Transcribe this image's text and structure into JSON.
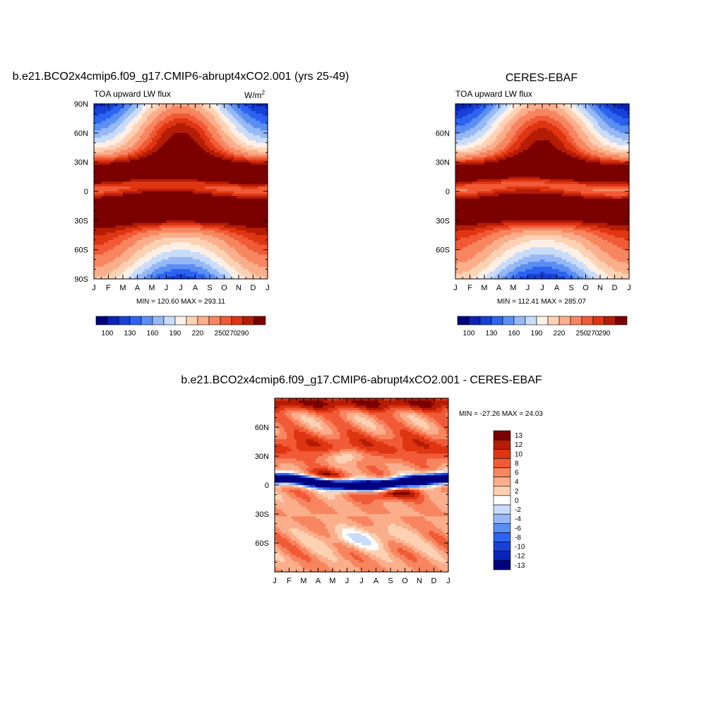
{
  "panels": [
    {
      "title": "b.e21.BCO2x4cmip6.f09_g17.CMIP6-abrupt4xCO2.001 (yrs 25-49)",
      "subtitle": "TOA upward LW flux",
      "units_base": "W/m",
      "units_exp": "2",
      "stats": "MIN = 120.60 MAX = 293.11",
      "colorbar_labels": [
        "100",
        "130",
        "160",
        "190",
        "220",
        "250",
        "270",
        "290"
      ]
    },
    {
      "title": "CERES-EBAF",
      "subtitle": "TOA upward LW flux",
      "units_base": "",
      "units_exp": "",
      "stats": "MIN = 112.41 MAX = 285.07",
      "colorbar_labels": [
        "100",
        "130",
        "160",
        "190",
        "220",
        "250",
        "270",
        "290"
      ]
    },
    {
      "title": "b.e21.BCO2x4cmip6.f09_g17.CMIP6-abrupt4xCO2.001 - CERES-EBAF",
      "subtitle": "",
      "units_base": "",
      "units_exp": "",
      "stats": "MIN = -27.26 MAX =  24.03",
      "colorbar_labels": [
        "13",
        "12",
        "10",
        "8",
        "6",
        "4",
        "2",
        "0",
        "-2",
        "-4",
        "-6",
        "-8",
        "-10",
        "-12",
        "-13"
      ]
    }
  ],
  "chart_data": [
    {
      "type": "heatmap",
      "title": "b.e21.BCO2x4cmip6.f09_g17.CMIP6-abrupt4xCO2.001 (yrs 25-49)",
      "subtitle": "TOA upward LW flux",
      "units": "W/m2",
      "x_tick_labels": [
        "J",
        "F",
        "M",
        "A",
        "M",
        "J",
        "J",
        "A",
        "S",
        "O",
        "N",
        "D",
        "J"
      ],
      "y_tick_labels": [
        "90N",
        "60N",
        "30N",
        "0",
        "30S",
        "60S",
        "90S"
      ],
      "ylim": [
        -90,
        90
      ],
      "levels": [
        100,
        115,
        130,
        145,
        160,
        175,
        190,
        205,
        220,
        235,
        250,
        260,
        270,
        280,
        290
      ],
      "min": 120.6,
      "max": 293.11
    },
    {
      "type": "heatmap",
      "title": "CERES-EBAF",
      "subtitle": "TOA upward LW flux",
      "units": "W/m2",
      "x_tick_labels": [
        "J",
        "F",
        "M",
        "A",
        "M",
        "J",
        "J",
        "A",
        "S",
        "O",
        "N",
        "D",
        "J"
      ],
      "y_tick_labels": [
        "60N",
        "30N",
        "0",
        "30S",
        "60S"
      ],
      "ylim": [
        -90,
        90
      ],
      "levels": [
        100,
        115,
        130,
        145,
        160,
        175,
        190,
        205,
        220,
        235,
        250,
        260,
        270,
        280,
        290
      ],
      "min": 112.41,
      "max": 285.07
    },
    {
      "type": "heatmap",
      "title": "b.e21.BCO2x4cmip6.f09_g17.CMIP6-abrupt4xCO2.001 - CERES-EBAF",
      "x_tick_labels": [
        "J",
        "F",
        "M",
        "A",
        "M",
        "J",
        "J",
        "A",
        "S",
        "O",
        "N",
        "D",
        "J"
      ],
      "y_tick_labels": [
        "60N",
        "30N",
        "0",
        "30S",
        "60S"
      ],
      "ylim": [
        -90,
        90
      ],
      "levels": [
        -13,
        -12,
        -10,
        -8,
        -6,
        -4,
        -2,
        0,
        2,
        4,
        6,
        8,
        10,
        12,
        13
      ],
      "min": -27.26,
      "max": 24.03
    }
  ],
  "colors": {
    "abs_palette": [
      "#00007e",
      "#0a23b8",
      "#1740d6",
      "#2d63f0",
      "#5b8ef2",
      "#97b8f5",
      "#c9dcfa",
      "#fff0e6",
      "#fdd2b4",
      "#fbae8b",
      "#f78660",
      "#f15a36",
      "#de3512",
      "#b51c05",
      "#7b0000"
    ],
    "diff_palette": [
      "#00007e",
      "#0a23b8",
      "#1740d6",
      "#2d63f0",
      "#5b8ef2",
      "#97b8f5",
      "#c9dcfa",
      "#ffffff",
      "#fdd2b4",
      "#fbae8b",
      "#f78660",
      "#f15a36",
      "#de3512",
      "#b51c05",
      "#7b0000"
    ]
  }
}
